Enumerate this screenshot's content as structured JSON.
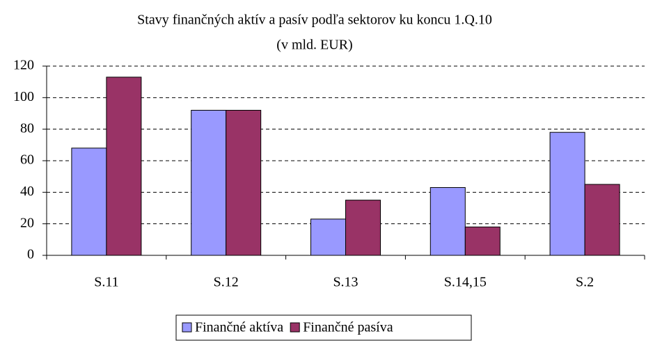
{
  "chart_data": {
    "type": "bar",
    "title": "Stavy finančných aktív a pasív podľa sektorov ku koncu 1.Q.10",
    "subtitle": "(v mld. EUR)",
    "categories": [
      "S.11",
      "S.12",
      "S.13",
      "S.14,15",
      "S.2"
    ],
    "series": [
      {
        "name": "Finančné aktíva",
        "color": "#9999ff",
        "values": [
          68,
          92,
          23,
          43,
          78
        ]
      },
      {
        "name": "Finančné pasíva",
        "color": "#993366",
        "values": [
          113,
          92,
          35,
          18,
          45
        ]
      }
    ],
    "ylim": [
      0,
      120
    ],
    "yticks": [
      0,
      20,
      40,
      60,
      80,
      100,
      120
    ],
    "grid": true,
    "legend": "bottom"
  }
}
